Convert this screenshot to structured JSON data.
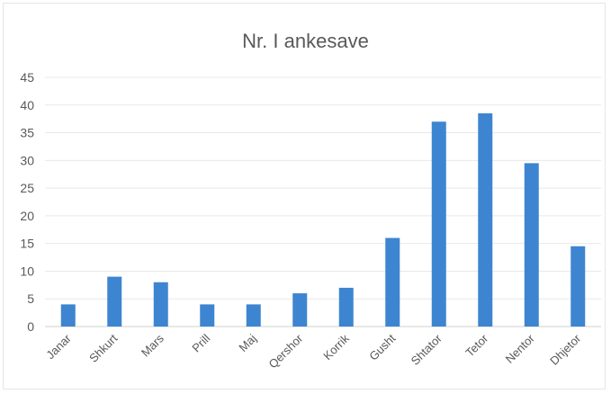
{
  "chart_data": {
    "type": "bar",
    "title": "Nr. I ankesave",
    "xlabel": "",
    "ylabel": "",
    "ylim": [
      0,
      45
    ],
    "yticks": [
      0,
      5,
      10,
      15,
      20,
      25,
      30,
      35,
      40,
      45
    ],
    "grid": true,
    "legend": "none",
    "bar_color": "#3d85d0",
    "categories": [
      "Janar",
      "Shkurt",
      "Mars",
      "Prill",
      "Maj",
      "Qershor",
      "Korrik",
      "Gusht",
      "Shtator",
      "Tetor",
      "Nentor",
      "Dhjetor"
    ],
    "values": [
      4,
      9,
      8,
      4,
      4,
      6,
      7,
      16,
      37,
      38.5,
      29.5,
      14.5
    ]
  }
}
